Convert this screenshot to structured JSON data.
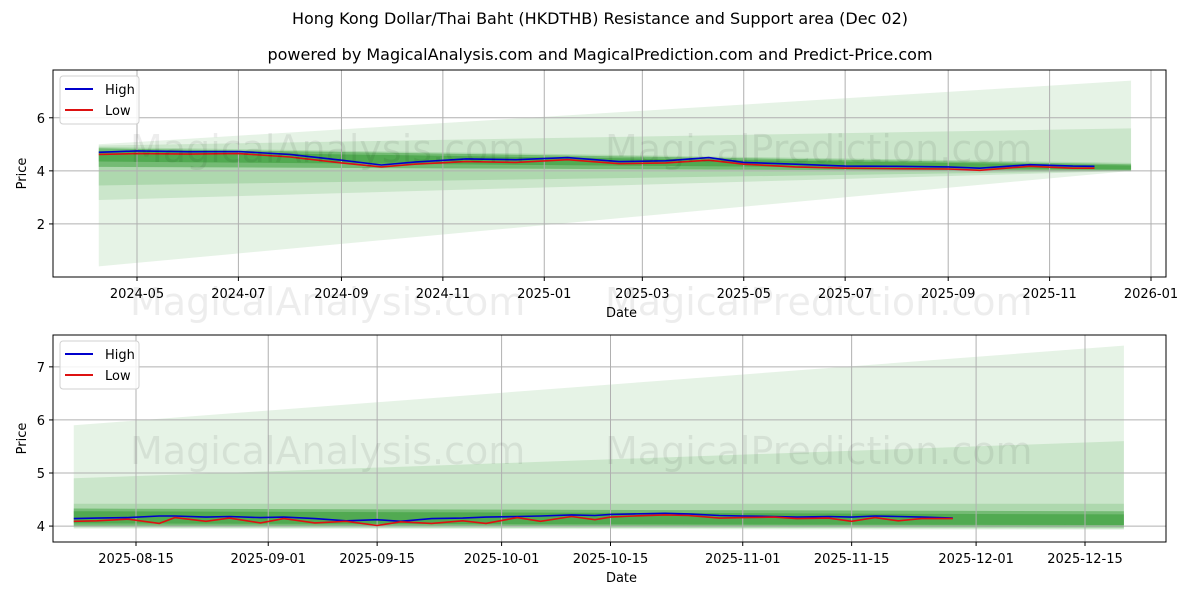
{
  "header": {
    "title": "Hong Kong Dollar/Thai Baht (HKDTHB) Resistance and Support area (Dec 02)",
    "subtitle": "powered by MagicalAnalysis.com and MagicalPrediction.com and Predict-Price.com"
  },
  "watermarks": [
    "MagicalAnalysis.com",
    "MagicalPrediction.com"
  ],
  "colors": {
    "high": "#0000cc",
    "low": "#dd1111",
    "band": "#2e9a2e",
    "grid": "#b0b0b0"
  },
  "chart_data": [
    {
      "type": "line",
      "title": "Full history with resistance/support bands",
      "xlabel": "Date",
      "ylabel": "Price",
      "ylim": [
        0,
        7.8
      ],
      "yticks": [
        2,
        4,
        6
      ],
      "xticks": [
        "2024-05",
        "2024-07",
        "2024-09",
        "2024-11",
        "2025-01",
        "2025-03",
        "2025-05",
        "2025-07",
        "2025-09",
        "2025-11",
        "2026-01"
      ],
      "grid": true,
      "legend": {
        "position": "upper left",
        "entries": [
          "High",
          "Low"
        ]
      },
      "x": [
        "2024-04-08",
        "2024-05-01",
        "2024-06-01",
        "2024-07-01",
        "2024-08-01",
        "2024-09-01",
        "2024-09-25",
        "2024-10-15",
        "2024-11-15",
        "2024-12-15",
        "2025-01-15",
        "2025-02-15",
        "2025-03-15",
        "2025-04-10",
        "2025-05-01",
        "2025-06-01",
        "2025-07-01",
        "2025-08-01",
        "2025-09-01",
        "2025-09-20",
        "2025-10-20",
        "2025-11-15",
        "2025-11-28"
      ],
      "series": [
        {
          "name": "High",
          "values": [
            4.7,
            4.75,
            4.72,
            4.73,
            4.62,
            4.4,
            4.22,
            4.33,
            4.45,
            4.42,
            4.5,
            4.35,
            4.38,
            4.5,
            4.32,
            4.25,
            4.18,
            4.17,
            4.15,
            4.1,
            4.23,
            4.18,
            4.17
          ]
        },
        {
          "name": "Low",
          "values": [
            4.62,
            4.65,
            4.63,
            4.65,
            4.52,
            4.3,
            4.15,
            4.25,
            4.35,
            4.32,
            4.42,
            4.27,
            4.3,
            4.4,
            4.25,
            4.15,
            4.1,
            4.08,
            4.07,
            4.02,
            4.17,
            4.1,
            4.1
          ]
        }
      ],
      "bands": [
        {
          "name": "outer",
          "start": "2024-04-08",
          "end": "2025-12-20",
          "top_start": 5.0,
          "top_end": 7.4,
          "bottom_start": 0.4,
          "bottom_end": 4.0,
          "opacity": 0.12
        },
        {
          "name": "second",
          "start": "2024-04-08",
          "end": "2025-12-20",
          "top_start": 4.95,
          "top_end": 5.6,
          "bottom_start": 2.9,
          "bottom_end": 4.0,
          "opacity": 0.14
        },
        {
          "name": "third",
          "start": "2024-04-08",
          "end": "2025-12-20",
          "top_start": 4.9,
          "top_end": 4.3,
          "bottom_start": 3.45,
          "bottom_end": 4.0,
          "opacity": 0.18
        },
        {
          "name": "inner",
          "start": "2024-04-08",
          "end": "2025-12-20",
          "top_start": 4.85,
          "top_end": 4.25,
          "bottom_start": 4.15,
          "bottom_end": 3.98,
          "opacity": 0.45
        },
        {
          "name": "core",
          "start": "2024-04-08",
          "end": "2025-12-20",
          "top_start": 4.75,
          "top_end": 4.2,
          "bottom_start": 4.35,
          "bottom_end": 4.05,
          "opacity": 0.5
        }
      ]
    },
    {
      "type": "line",
      "title": "Recent zoom with resistance/support bands",
      "xlabel": "Date",
      "ylabel": "Price",
      "ylim": [
        3.7,
        7.6
      ],
      "yticks": [
        4,
        5,
        6,
        7
      ],
      "xticks": [
        "2025-08-15",
        "2025-09-01",
        "2025-09-15",
        "2025-10-01",
        "2025-10-15",
        "2025-11-01",
        "2025-11-15",
        "2025-12-01",
        "2025-12-15"
      ],
      "grid": true,
      "legend": {
        "position": "upper left",
        "entries": [
          "High",
          "Low"
        ]
      },
      "x": [
        "2025-08-07",
        "2025-08-10",
        "2025-08-14",
        "2025-08-18",
        "2025-08-20",
        "2025-08-24",
        "2025-08-27",
        "2025-08-31",
        "2025-09-03",
        "2025-09-07",
        "2025-09-11",
        "2025-09-15",
        "2025-09-18",
        "2025-09-22",
        "2025-09-26",
        "2025-09-29",
        "2025-10-03",
        "2025-10-06",
        "2025-10-10",
        "2025-10-13",
        "2025-10-15",
        "2025-10-18",
        "2025-10-22",
        "2025-10-25",
        "2025-10-29",
        "2025-11-01",
        "2025-11-05",
        "2025-11-08",
        "2025-11-12",
        "2025-11-15",
        "2025-11-18",
        "2025-11-21",
        "2025-11-24",
        "2025-11-28"
      ],
      "series": [
        {
          "name": "High",
          "values": [
            4.14,
            4.15,
            4.16,
            4.19,
            4.19,
            4.17,
            4.18,
            4.16,
            4.17,
            4.14,
            4.1,
            4.12,
            4.09,
            4.14,
            4.15,
            4.17,
            4.18,
            4.19,
            4.21,
            4.2,
            4.22,
            4.23,
            4.24,
            4.23,
            4.2,
            4.19,
            4.18,
            4.17,
            4.18,
            4.17,
            4.19,
            4.18,
            4.17,
            4.15
          ]
        },
        {
          "name": "Low",
          "values": [
            4.09,
            4.1,
            4.13,
            4.05,
            4.16,
            4.09,
            4.15,
            4.06,
            4.14,
            4.06,
            4.09,
            4.01,
            4.08,
            4.05,
            4.1,
            4.05,
            4.16,
            4.09,
            4.18,
            4.12,
            4.17,
            4.19,
            4.21,
            4.2,
            4.15,
            4.16,
            4.17,
            4.14,
            4.15,
            4.09,
            4.16,
            4.1,
            4.14,
            4.14
          ]
        }
      ],
      "bands": [
        {
          "name": "outer",
          "start": "2025-08-07",
          "end": "2025-12-20",
          "top_start": 5.9,
          "top_end": 7.4,
          "bottom_start": 3.95,
          "bottom_end": 3.93,
          "opacity": 0.12
        },
        {
          "name": "second",
          "start": "2025-08-07",
          "end": "2025-12-20",
          "top_start": 4.9,
          "top_end": 5.6,
          "bottom_start": 3.97,
          "bottom_end": 3.95,
          "opacity": 0.14
        },
        {
          "name": "third",
          "start": "2025-08-07",
          "end": "2025-12-20",
          "top_start": 4.42,
          "top_end": 4.42,
          "bottom_start": 3.98,
          "bottom_end": 3.96,
          "opacity": 0.18
        },
        {
          "name": "inner",
          "start": "2025-08-07",
          "end": "2025-12-20",
          "top_start": 4.33,
          "top_end": 4.28,
          "bottom_start": 4.0,
          "bottom_end": 3.98,
          "opacity": 0.45
        },
        {
          "name": "core",
          "start": "2025-08-07",
          "end": "2025-12-20",
          "top_start": 4.28,
          "top_end": 4.22,
          "bottom_start": 4.05,
          "bottom_end": 4.02,
          "opacity": 0.5
        }
      ]
    }
  ]
}
